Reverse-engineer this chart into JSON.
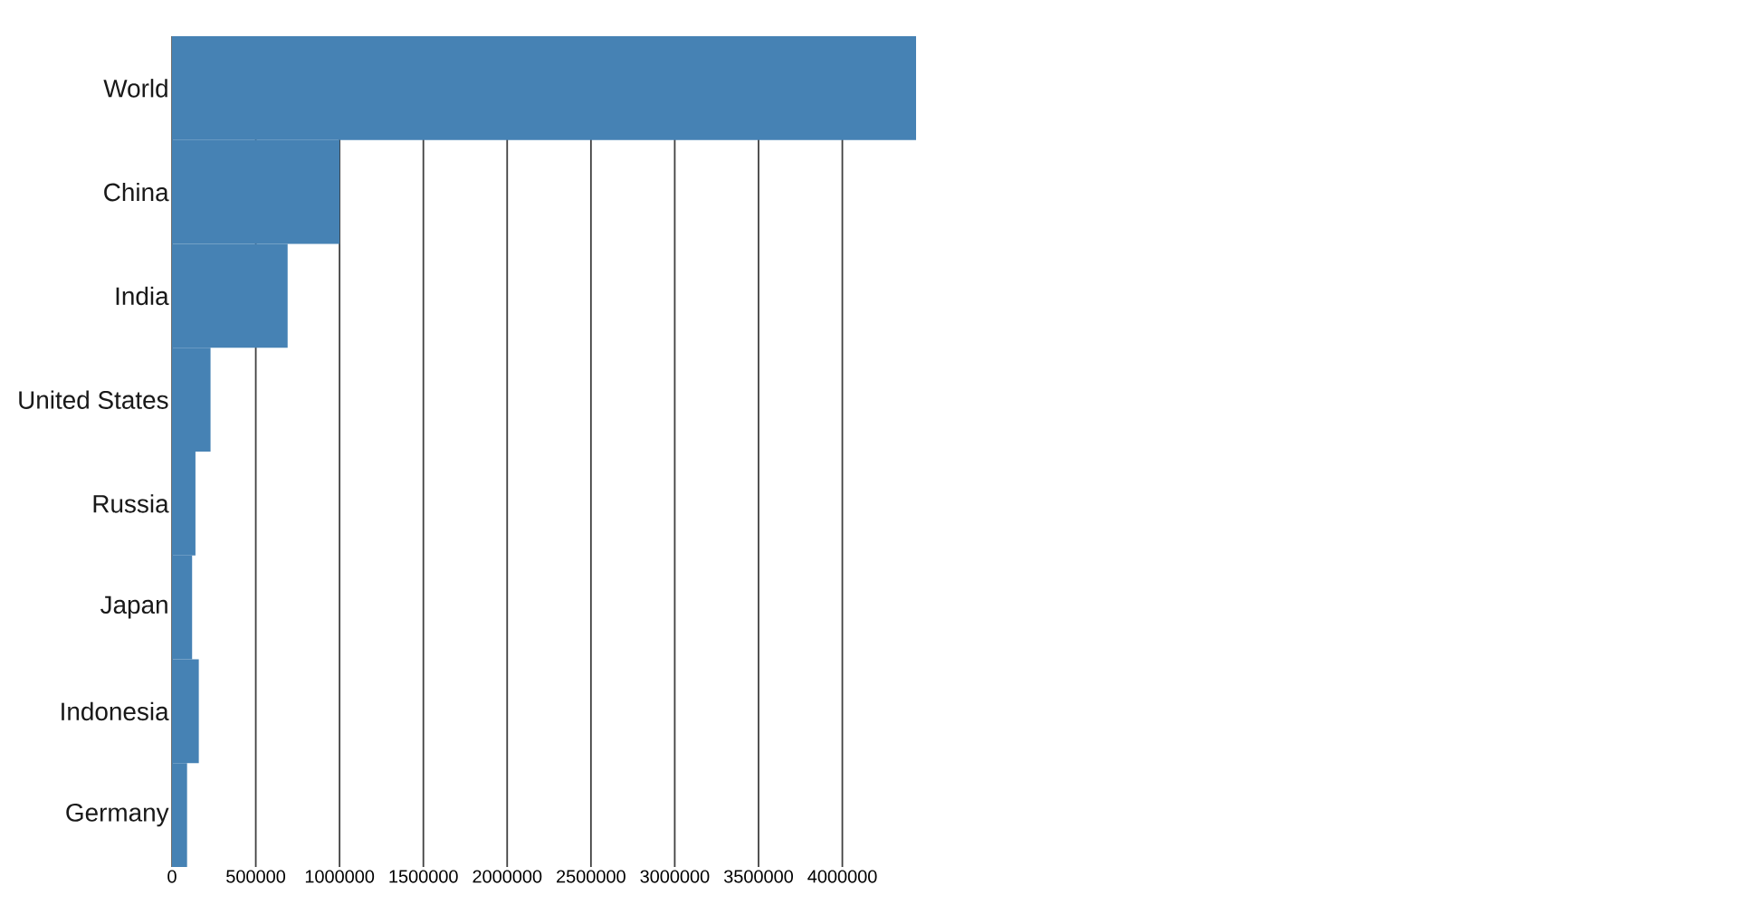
{
  "chart_data": {
    "type": "bar",
    "orientation": "horizontal",
    "categories": [
      "World",
      "China",
      "India",
      "United States",
      "Russia",
      "Japan",
      "Indonesia",
      "Germany"
    ],
    "values": [
      4440000,
      1000000,
      690000,
      230000,
      140000,
      120000,
      160000,
      90000
    ],
    "color": "#4682b4",
    "xlim": [
      0,
      4440000
    ],
    "xticks": [
      0,
      500000,
      1000000,
      1500000,
      2000000,
      2500000,
      3000000,
      3500000,
      4000000
    ],
    "grid": "x"
  }
}
